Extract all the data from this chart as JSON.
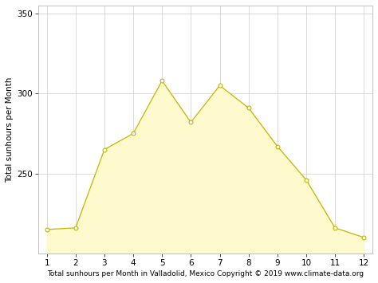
{
  "months": [
    1,
    2,
    3,
    4,
    5,
    6,
    7,
    8,
    9,
    10,
    11,
    12
  ],
  "sunhours": [
    215,
    216,
    265,
    275,
    308,
    282,
    305,
    291,
    267,
    246,
    216,
    210
  ],
  "fill_color": "#FFFACD",
  "line_color": "#C8B400",
  "line_width": 0.9,
  "marker_color": "#FFFFFF",
  "marker_edge_color": "#C8B400",
  "marker_size": 3.5,
  "background_color": "#FFFFFF",
  "grid_color": "#CCCCCC",
  "xlabel": "Total sunhours per Month in Valladolid, Mexico Copyright © 2019 www.climate-data.org",
  "ylabel": "Total sunhours per Month",
  "ylim_bottom": 200,
  "ylim_top": 355,
  "yticks": [
    250,
    300,
    350
  ],
  "xticks": [
    1,
    2,
    3,
    4,
    5,
    6,
    7,
    8,
    9,
    10,
    11,
    12
  ],
  "xlabel_fontsize": 6.5,
  "ylabel_fontsize": 7.5,
  "tick_fontsize": 7.5,
  "figsize": [
    4.74,
    3.55
  ],
  "dpi": 100
}
